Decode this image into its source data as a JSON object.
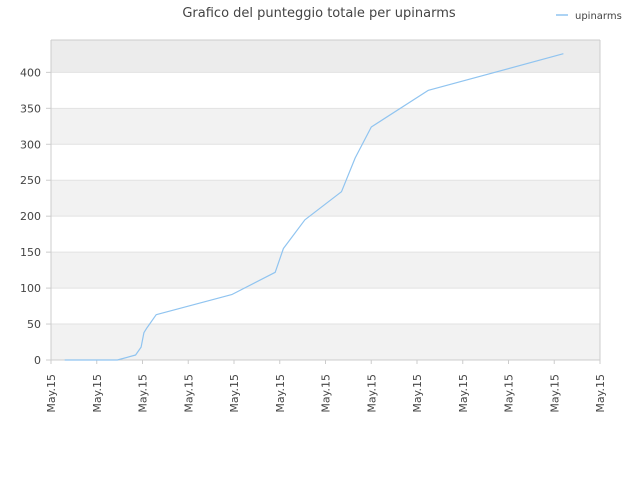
{
  "chart_data": {
    "type": "line",
    "title": "Grafico del punteggio totale per upinarms",
    "xlabel": "",
    "ylabel": "",
    "ylim": [
      0,
      445
    ],
    "yticks": [
      0,
      50,
      100,
      150,
      200,
      250,
      300,
      350,
      400
    ],
    "xticks": [
      "May.15",
      "May.15",
      "May.15",
      "May.15",
      "May.15",
      "May.15",
      "May.15",
      "May.15",
      "May.15",
      "May.15",
      "May.15",
      "May.15",
      "May.15"
    ],
    "xlim": [
      0,
      12
    ],
    "grid": true,
    "legend": "top-right",
    "colors": {
      "series": "#90c4f0",
      "band": "#f2f2f2",
      "band_top": "#ececec",
      "grid": "#e2e2e2",
      "axis": "#cccccc",
      "text": "#444444"
    },
    "series": [
      {
        "name": "upinarms",
        "x": [
          0.3,
          1.45,
          1.85,
          1.97,
          2.03,
          2.1,
          2.3,
          3.95,
          4.9,
          5.08,
          5.55,
          6.35,
          6.65,
          7.0,
          8.25,
          11.2
        ],
        "y": [
          0,
          0,
          7,
          18,
          38,
          45,
          63,
          91,
          122,
          155,
          195,
          234,
          281,
          324,
          375,
          426
        ]
      }
    ]
  }
}
